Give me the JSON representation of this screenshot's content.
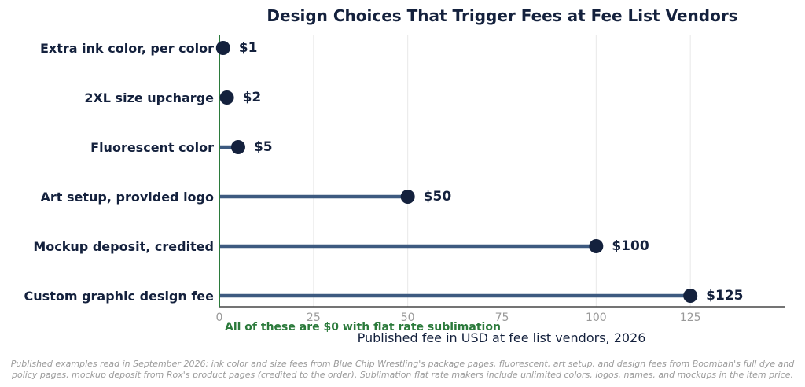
{
  "chart_data": {
    "type": "lollipop",
    "title": "Design Choices That Trigger Fees at Fee List Vendors",
    "xlabel": "Published fee in USD at fee list vendors, 2026",
    "ylabel": "",
    "xlim": [
      0,
      150
    ],
    "xticks": [
      0,
      25,
      50,
      75,
      100,
      125
    ],
    "grid": "vertical",
    "categories": [
      "Extra ink color, per color",
      "2XL size upcharge",
      "Fluorescent color",
      "Art setup, provided logo",
      "Mockup deposit, credited",
      "Custom graphic design fee"
    ],
    "values": [
      1,
      2,
      5,
      50,
      100,
      125
    ],
    "value_labels": [
      "$1",
      "$2",
      "$5",
      "$50",
      "$100",
      "$125"
    ],
    "annotation": "All of these are $0 with flat rate sublimation",
    "colors": {
      "stem": "#3d5a80",
      "dot": "#14213d",
      "baseline": "#2b7a3b",
      "annotation": "#2b7a3b"
    }
  },
  "footnote": {
    "line1": "Published examples read in September 2026: ink color and size fees from Blue Chip Wrestling's package pages, fluorescent, art setup, and design fees from Boombah's full dye and",
    "line2": "policy pages, mockup deposit from Rox's product pages (credited to the order). Sublimation flat rate makers include unlimited colors, logos, names, and mockups in the item price."
  }
}
